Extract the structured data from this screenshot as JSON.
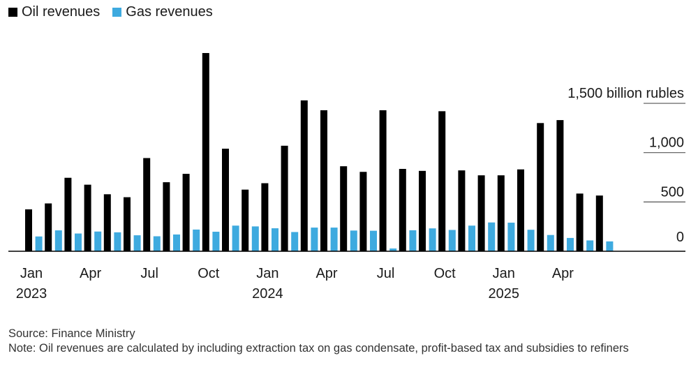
{
  "legend": {
    "oil_label": "Oil revenues",
    "gas_label": "Gas revenues"
  },
  "colors": {
    "oil": "#000000",
    "gas": "#3eaadf",
    "axis": "#000000",
    "grid": "#555555"
  },
  "chart_data": {
    "type": "bar",
    "categories": [
      "Jan 2023",
      "Feb 2023",
      "Mar 2023",
      "Apr 2023",
      "May 2023",
      "Jun 2023",
      "Jul 2023",
      "Aug 2023",
      "Sep 2023",
      "Oct 2023",
      "Nov 2023",
      "Dec 2023",
      "Jan 2024",
      "Feb 2024",
      "Mar 2024",
      "Apr 2024",
      "May 2024",
      "Jun 2024",
      "Jul 2024",
      "Aug 2024",
      "Sep 2024",
      "Oct 2024",
      "Nov 2024",
      "Dec 2024",
      "Jan 2025",
      "Feb 2025",
      "Mar 2025",
      "Apr 2025",
      "May 2025",
      "Jun 2025"
    ],
    "series": [
      {
        "name": "Oil revenues",
        "values": [
          425,
          485,
          745,
          675,
          578,
          548,
          945,
          700,
          785,
          2010,
          1040,
          625,
          690,
          1070,
          1530,
          1430,
          862,
          805,
          1430,
          835,
          815,
          1420,
          820,
          770,
          770,
          830,
          1300,
          1330,
          585,
          565
        ]
      },
      {
        "name": "Gas revenues",
        "values": [
          150,
          212,
          180,
          200,
          192,
          162,
          152,
          170,
          220,
          198,
          260,
          252,
          233,
          195,
          240,
          240,
          210,
          208,
          28,
          213,
          232,
          216,
          260,
          292,
          290,
          218,
          165,
          135,
          110,
          100
        ]
      }
    ],
    "y_tick_values": [
      0,
      500,
      1000,
      1500
    ],
    "y_tick_labels": [
      "0",
      "500",
      "1,000",
      "1,500 billion rubles"
    ],
    "x_tick_labels": [
      {
        "index": 0,
        "month": "Jan",
        "year": "2023"
      },
      {
        "index": 3,
        "month": "Apr",
        "year": ""
      },
      {
        "index": 6,
        "month": "Jul",
        "year": ""
      },
      {
        "index": 9,
        "month": "Oct",
        "year": ""
      },
      {
        "index": 12,
        "month": "Jan",
        "year": "2024"
      },
      {
        "index": 15,
        "month": "Apr",
        "year": ""
      },
      {
        "index": 18,
        "month": "Jul",
        "year": ""
      },
      {
        "index": 21,
        "month": "Oct",
        "year": ""
      },
      {
        "index": 24,
        "month": "Jan",
        "year": "2025"
      },
      {
        "index": 27,
        "month": "Apr",
        "year": ""
      }
    ],
    "ylim": [
      0,
      2100
    ],
    "legend_position": "top-left",
    "grid": "right-side tick lines only",
    "title": "",
    "xlabel": "",
    "ylabel": ""
  },
  "footer": {
    "source": "Source: Finance Ministry",
    "note": "Note: Oil revenues are calculated by including extraction tax on gas condensate, profit-based tax and subsidies to refiners"
  }
}
